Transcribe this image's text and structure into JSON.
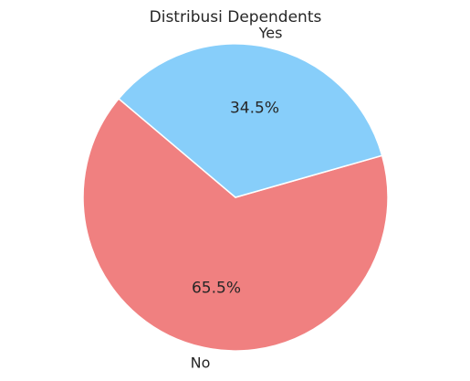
{
  "chart_data": {
    "type": "pie",
    "title": "Distribusi Dependents",
    "slices": [
      {
        "label": "No",
        "value": 65.5,
        "pct_label": "65.5%",
        "color": "#F08080"
      },
      {
        "label": "Yes",
        "value": 34.5,
        "pct_label": "34.5%",
        "color": "#87CEFA"
      }
    ],
    "start_angle_deg": 140,
    "direction": "counterclockwise",
    "edge_color": "#ffffff",
    "legend": "none"
  }
}
